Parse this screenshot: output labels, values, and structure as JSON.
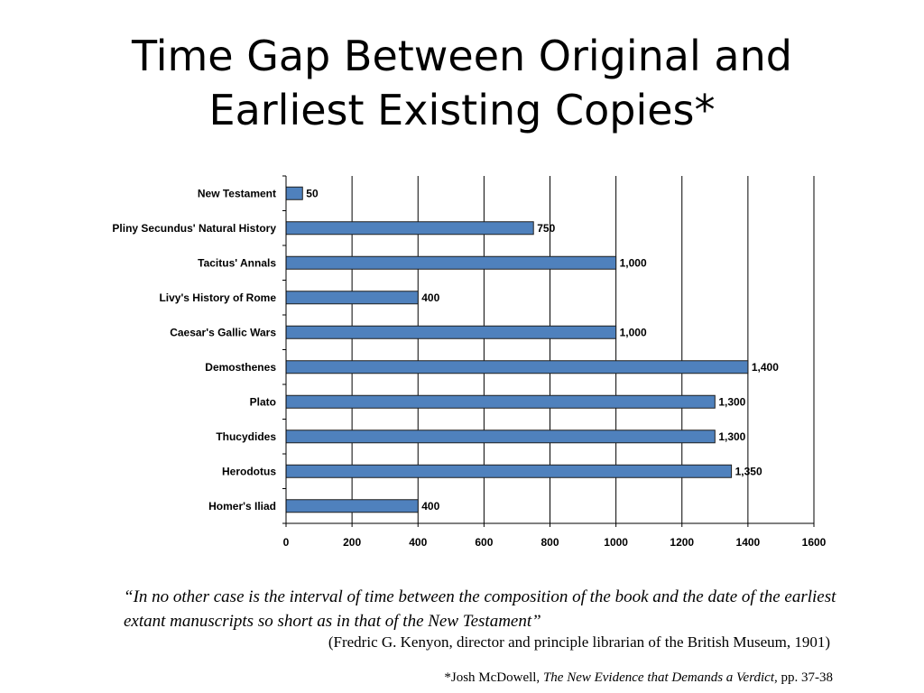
{
  "slide": {
    "title_line1": "Time Gap Between Original and",
    "title_line2": "Earliest Existing Copies*",
    "quote": "“In no other case is the interval of time between the composition of the book and the date of the earliest extant manuscripts so short as in that of the New Testament”",
    "attribution": "(Fredric G. Kenyon, director and principle librarian of the British Museum, 1901)",
    "footnote_prefix": "*Josh McDowell, ",
    "footnote_book": "The New Evidence that Demands a Verdict",
    "footnote_suffix": ", pp. 37-38"
  },
  "chart_data": {
    "type": "bar",
    "orientation": "horizontal",
    "categories": [
      "New Testament",
      "Pliny Secundus' Natural History",
      "Tacitus' Annals",
      "Livy's History of Rome",
      "Caesar's Gallic Wars",
      "Demosthenes",
      "Plato",
      "Thucydides",
      "Herodotus",
      "Homer's Iliad"
    ],
    "values": [
      50,
      750,
      1000,
      400,
      1000,
      1400,
      1300,
      1300,
      1350,
      400
    ],
    "value_labels": [
      "50",
      "750",
      "1,000",
      "400",
      "1,000",
      "1,400",
      "1,300",
      "1,300",
      "1,350",
      "400"
    ],
    "xlim": [
      0,
      1600
    ],
    "xticks": [
      0,
      200,
      400,
      600,
      800,
      1000,
      1200,
      1400,
      1600
    ],
    "grid": true,
    "legend": false,
    "bar_color": "#4F81BD",
    "bar_border": "#1F1F1F"
  }
}
